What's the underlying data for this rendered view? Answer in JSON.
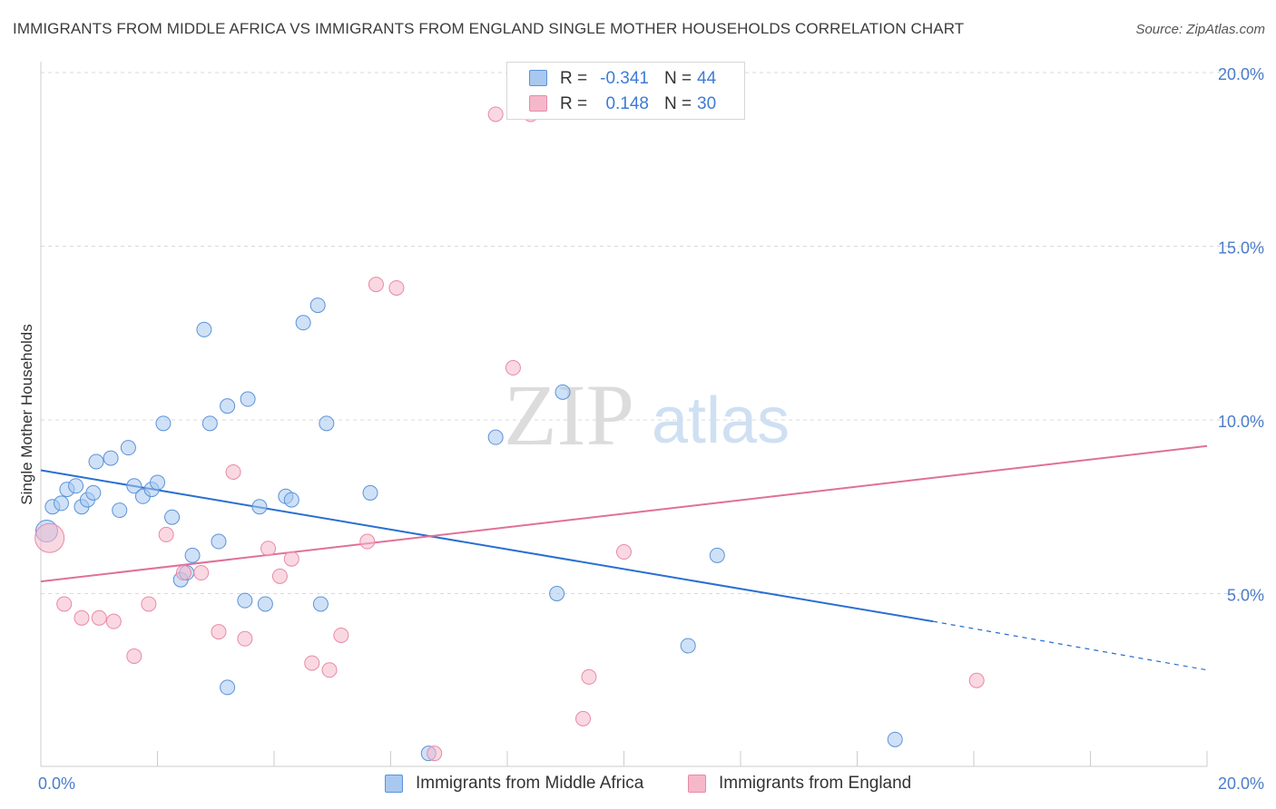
{
  "header": {
    "title": "IMMIGRANTS FROM MIDDLE AFRICA VS IMMIGRANTS FROM ENGLAND SINGLE MOTHER HOUSEHOLDS CORRELATION CHART",
    "source": "Source: ZipAtlas.com"
  },
  "watermark": {
    "part1": "ZIP",
    "part2": "atlas"
  },
  "legend": {
    "rows": [
      {
        "r_label": "R =",
        "r_value": "-0.341",
        "n_label": "N =",
        "n_value": "44",
        "color": "#a8c8f0"
      },
      {
        "r_label": "R =",
        "r_value": "0.148",
        "n_label": "N =",
        "n_value": "30",
        "color": "#f5b8cb"
      }
    ]
  },
  "bottom_legend": {
    "items": [
      {
        "label": "Immigrants from Middle Africa",
        "color": "#a8c8f0"
      },
      {
        "label": "Immigrants from England",
        "color": "#f5b8cb"
      }
    ]
  },
  "colors": {
    "blue_fill": "#a8c8f0",
    "blue_stroke": "#5b93d8",
    "blue_line": "#2a6fd1",
    "pink_fill": "#f5b8cb",
    "pink_stroke": "#e88aa8",
    "pink_line": "#e07099",
    "axis_text": "#4a7cc9",
    "grid": "#d9d9d9"
  },
  "chart_data": {
    "type": "scatter",
    "title": "IMMIGRANTS FROM MIDDLE AFRICA VS IMMIGRANTS FROM ENGLAND SINGLE MOTHER HOUSEHOLDS CORRELATION CHART",
    "xlabel": "",
    "ylabel": "Single Mother Households",
    "xlim": [
      0,
      20
    ],
    "ylim": [
      0,
      20
    ],
    "x_tick_labels": [
      "0.0%",
      "20.0%"
    ],
    "y_tick_values": [
      5,
      10,
      15,
      20
    ],
    "y_tick_labels": [
      "5.0%",
      "10.0%",
      "15.0%",
      "20.0%"
    ],
    "grid": "horizontal dashed",
    "legend_position": "top-center",
    "series": [
      {
        "name": "Immigrants from Middle Africa",
        "r": -0.341,
        "n": 44,
        "points": [
          [
            0.1,
            6.8
          ],
          [
            0.2,
            7.5
          ],
          [
            0.35,
            7.6
          ],
          [
            0.45,
            8.0
          ],
          [
            0.6,
            8.1
          ],
          [
            0.7,
            7.5
          ],
          [
            0.8,
            7.7
          ],
          [
            0.9,
            7.9
          ],
          [
            0.95,
            8.8
          ],
          [
            1.2,
            8.9
          ],
          [
            1.35,
            7.4
          ],
          [
            1.5,
            9.2
          ],
          [
            1.6,
            8.1
          ],
          [
            1.75,
            7.8
          ],
          [
            1.9,
            8.0
          ],
          [
            2.0,
            8.2
          ],
          [
            2.1,
            9.9
          ],
          [
            2.25,
            7.2
          ],
          [
            2.4,
            5.4
          ],
          [
            2.5,
            5.6
          ],
          [
            2.6,
            6.1
          ],
          [
            2.8,
            12.6
          ],
          [
            2.9,
            9.9
          ],
          [
            3.05,
            6.5
          ],
          [
            3.2,
            10.4
          ],
          [
            3.2,
            2.3
          ],
          [
            3.5,
            4.8
          ],
          [
            3.55,
            10.6
          ],
          [
            3.75,
            7.5
          ],
          [
            3.85,
            4.7
          ],
          [
            4.2,
            7.8
          ],
          [
            4.3,
            7.7
          ],
          [
            4.5,
            12.8
          ],
          [
            4.75,
            13.3
          ],
          [
            4.8,
            4.7
          ],
          [
            4.9,
            9.9
          ],
          [
            5.65,
            7.9
          ],
          [
            6.65,
            0.4
          ],
          [
            7.8,
            9.5
          ],
          [
            8.85,
            5.0
          ],
          [
            8.95,
            10.8
          ],
          [
            11.1,
            3.5
          ],
          [
            11.6,
            6.1
          ],
          [
            14.65,
            0.8
          ]
        ]
      },
      {
        "name": "Immigrants from England",
        "r": 0.148,
        "n": 30,
        "points": [
          [
            0.15,
            6.6
          ],
          [
            0.4,
            4.7
          ],
          [
            0.7,
            4.3
          ],
          [
            1.0,
            4.3
          ],
          [
            1.25,
            4.2
          ],
          [
            1.6,
            3.2
          ],
          [
            1.85,
            4.7
          ],
          [
            2.15,
            6.7
          ],
          [
            2.45,
            5.6
          ],
          [
            2.75,
            5.6
          ],
          [
            3.05,
            3.9
          ],
          [
            3.3,
            8.5
          ],
          [
            3.5,
            3.7
          ],
          [
            3.9,
            6.3
          ],
          [
            4.1,
            5.5
          ],
          [
            4.3,
            6.0
          ],
          [
            4.65,
            3.0
          ],
          [
            4.95,
            2.8
          ],
          [
            5.15,
            3.8
          ],
          [
            5.6,
            6.5
          ],
          [
            5.75,
            13.9
          ],
          [
            6.1,
            13.8
          ],
          [
            6.75,
            0.4
          ],
          [
            7.8,
            18.8
          ],
          [
            8.1,
            11.5
          ],
          [
            8.4,
            18.8
          ],
          [
            9.3,
            1.4
          ],
          [
            9.4,
            2.6
          ],
          [
            10.0,
            6.2
          ],
          [
            16.05,
            2.5
          ]
        ]
      }
    ],
    "trendlines": [
      {
        "series": "Immigrants from Middle Africa",
        "x": [
          0,
          15.3
        ],
        "y": [
          8.55,
          4.2
        ],
        "dashed_extension_to_x": 20,
        "dashed_extension_y": 2.8
      },
      {
        "series": "Immigrants from England",
        "x": [
          0,
          20
        ],
        "y": [
          5.35,
          9.25
        ]
      }
    ]
  }
}
